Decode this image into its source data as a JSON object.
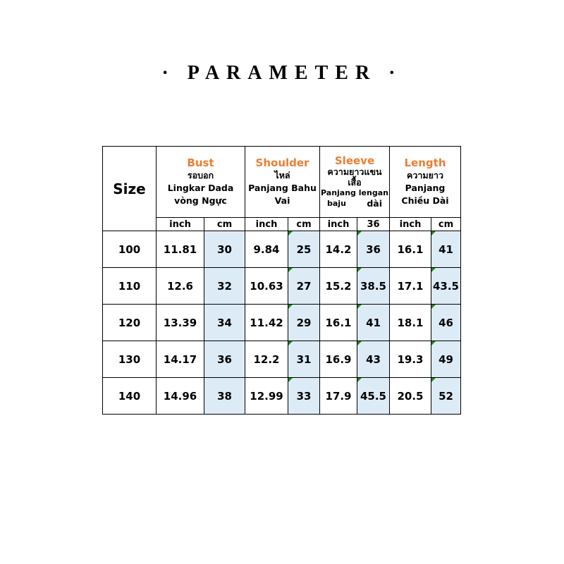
{
  "title": "· PARAMETER ·",
  "headers": {
    "size": "Size",
    "bust": {
      "en": "Bust",
      "th": "รอบอก",
      "id": "Lingkar Dada",
      "vi": "vòng Ngực"
    },
    "shoulder": {
      "en": "Shoulder",
      "th": "ไหล่",
      "id": "Panjang Bahu",
      "vi": "Vai"
    },
    "sleeve": {
      "en": "Sleeve",
      "th": "ความยาวแขนเสื้อ",
      "id": "Panjang lengan",
      "id2": "baju",
      "vi": "dài"
    },
    "length": {
      "en": "Length",
      "th": "ความยาว",
      "id": "Panjang",
      "vi": "Chiều Dài"
    }
  },
  "subheaders": [
    "inch",
    "cm",
    "inch",
    "cm",
    "inch",
    "36",
    "inch",
    "cm"
  ],
  "rows": [
    [
      "100",
      "11.81",
      "30",
      "9.84",
      "25",
      "14.2",
      "36",
      "16.1",
      "41"
    ],
    [
      "110",
      "12.6",
      "32",
      "10.63",
      "27",
      "15.2",
      "38.5",
      "17.1",
      "43.5"
    ],
    [
      "120",
      "13.39",
      "34",
      "11.42",
      "29",
      "16.1",
      "41",
      "18.1",
      "46"
    ],
    [
      "130",
      "14.17",
      "36",
      "12.2",
      "31",
      "16.9",
      "43",
      "19.3",
      "49"
    ],
    [
      "140",
      "14.96",
      "38",
      "12.99",
      "33",
      "17.9",
      "45.5",
      "20.5",
      "52"
    ]
  ],
  "colors": {
    "accent": "#ed7d31",
    "cm_fill": "#ddebf7"
  }
}
